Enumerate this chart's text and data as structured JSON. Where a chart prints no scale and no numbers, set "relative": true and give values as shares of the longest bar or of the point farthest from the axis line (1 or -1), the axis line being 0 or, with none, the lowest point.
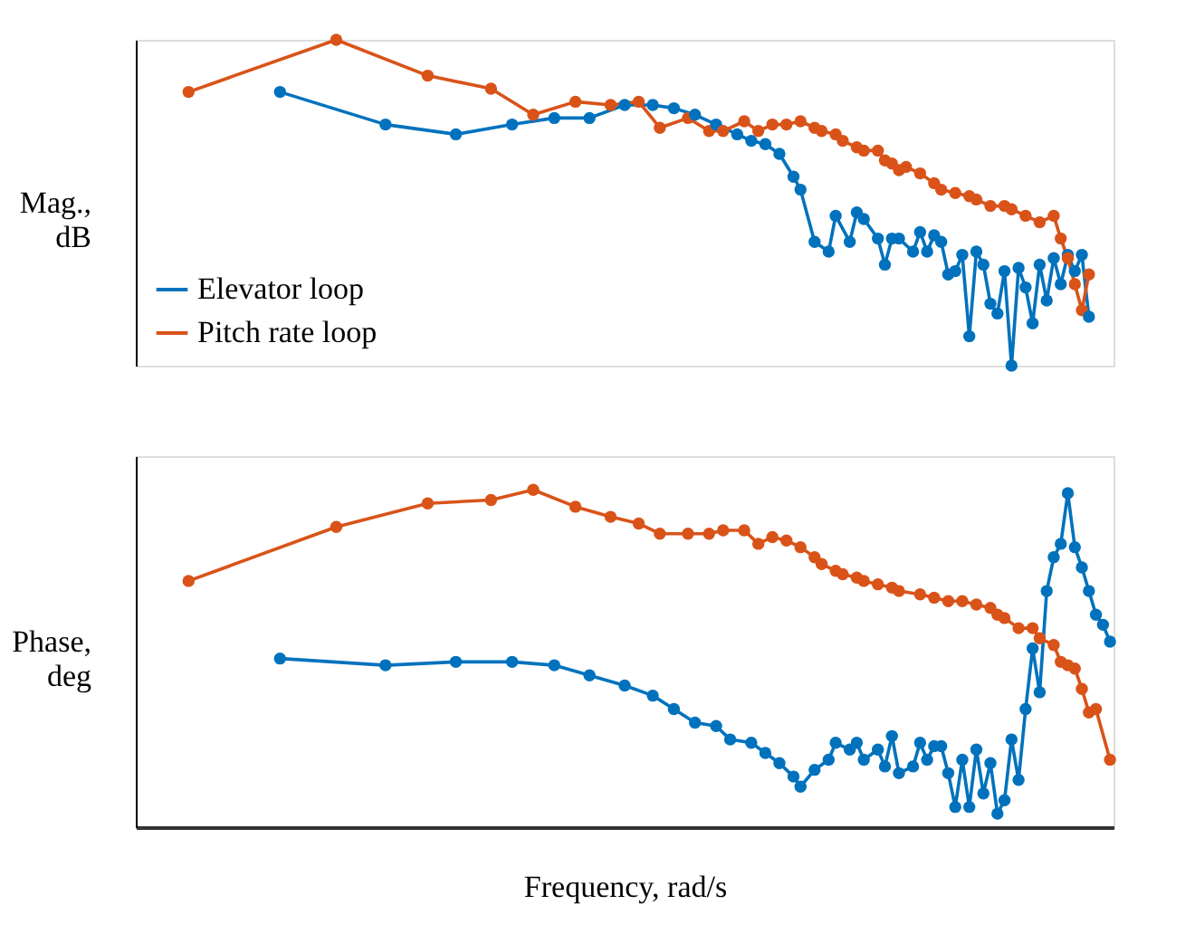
{
  "chart_data": [
    {
      "type": "line",
      "ylabel": "Mag., dB",
      "relative": true,
      "tick_labels": false,
      "grid": false,
      "legend": "bottom left",
      "marker": "circle",
      "line_style": "solid",
      "categories": [
        null,
        null,
        null,
        null,
        null,
        null,
        null,
        null,
        null,
        null,
        null,
        null,
        null,
        null,
        null,
        null,
        null,
        null,
        null,
        null,
        null,
        null,
        null,
        null,
        null,
        null,
        null,
        null,
        null,
        null,
        null,
        null,
        null,
        null,
        null,
        null,
        null,
        null,
        null,
        null,
        null,
        null,
        null,
        null,
        null,
        null,
        null,
        null,
        null,
        null,
        null,
        null,
        null,
        null,
        null,
        null,
        null,
        null,
        null,
        null,
        null,
        null,
        null,
        null,
        null,
        null,
        null,
        null,
        null,
        null,
        null,
        null,
        null,
        null,
        null,
        null,
        null,
        null,
        null,
        null,
        null,
        null,
        null,
        null,
        null,
        null,
        null,
        null,
        null,
        null,
        null,
        null,
        null,
        null,
        null,
        null,
        null,
        null,
        null,
        null,
        null,
        null,
        null,
        null,
        null,
        null,
        null,
        null,
        null,
        null,
        null,
        null,
        null,
        null,
        null,
        null,
        null,
        null,
        null,
        null,
        null,
        null,
        null,
        null,
        null,
        null,
        null,
        null,
        null,
        null,
        null,
        null,
        null,
        null,
        null,
        null,
        null,
        null,
        null
      ],
      "series": [
        {
          "name": "Elevator loop",
          "color": "#0072bd",
          "values": [
            null,
            null,
            null,
            null,
            null,
            null,
            null,
            null,
            null,
            null,
            null,
            null,
            null,
            null,
            null,
            null,
            null,
            null,
            null,
            null,
            0.84,
            null,
            null,
            null,
            null,
            null,
            null,
            null,
            null,
            null,
            null,
            null,
            null,
            null,
            null,
            0.74,
            null,
            null,
            null,
            null,
            null,
            null,
            null,
            null,
            null,
            0.71,
            null,
            null,
            null,
            null,
            null,
            null,
            null,
            0.74,
            null,
            null,
            null,
            null,
            null,
            0.76,
            null,
            null,
            null,
            null,
            0.76,
            null,
            null,
            null,
            null,
            0.8,
            null,
            null,
            null,
            0.8,
            null,
            null,
            0.79,
            null,
            null,
            0.77,
            null,
            null,
            0.74,
            null,
            null,
            0.71,
            null,
            0.69,
            null,
            0.68,
            null,
            0.65,
            null,
            0.58,
            0.54,
            null,
            0.38,
            null,
            0.35,
            0.46,
            null,
            0.38,
            0.47,
            0.45,
            null,
            0.39,
            0.31,
            0.39,
            0.39,
            null,
            0.35,
            0.41,
            0.35,
            0.4,
            0.38,
            0.28,
            0.29,
            0.34,
            0.09,
            0.35,
            0.31,
            0.19,
            0.16,
            0.29,
            0,
            0.3,
            0.24,
            0.13,
            0.31,
            0.2,
            0.33,
            0.25,
            0.34,
            0.29,
            0.34,
            0.15,
            null,
            null,
            null
          ]
        },
        {
          "name": "Pitch rate loop",
          "color": "#d95319",
          "values": [
            null,
            null,
            null,
            null,
            null,
            null,
            null,
            0.84,
            null,
            null,
            null,
            null,
            null,
            null,
            null,
            null,
            null,
            null,
            null,
            null,
            null,
            null,
            null,
            null,
            null,
            null,
            null,
            null,
            1,
            null,
            null,
            null,
            null,
            null,
            null,
            null,
            null,
            null,
            null,
            null,
            null,
            0.89,
            null,
            null,
            null,
            null,
            null,
            null,
            null,
            null,
            0.85,
            null,
            null,
            null,
            null,
            null,
            0.77,
            null,
            null,
            null,
            null,
            null,
            0.81,
            null,
            null,
            null,
            null,
            0.8,
            null,
            null,
            null,
            0.81,
            null,
            null,
            0.73,
            null,
            null,
            null,
            0.76,
            null,
            null,
            0.72,
            null,
            0.72,
            null,
            null,
            0.75,
            null,
            0.72,
            null,
            0.74,
            null,
            0.74,
            null,
            0.75,
            null,
            0.73,
            0.72,
            null,
            0.71,
            0.69,
            null,
            0.67,
            0.66,
            null,
            0.66,
            0.63,
            0.62,
            0.6,
            0.61,
            null,
            0.59,
            null,
            0.56,
            0.54,
            null,
            0.53,
            null,
            0.52,
            0.51,
            null,
            0.49,
            null,
            0.49,
            0.48,
            null,
            0.46,
            null,
            0.44,
            null,
            0.46,
            0.39,
            0.33,
            0.25,
            0.17,
            0.28,
            null,
            null,
            null
          ]
        }
      ]
    },
    {
      "type": "line",
      "ylabel": "Phase, deg",
      "xlabel": "Frequency, rad/s",
      "relative": true,
      "tick_labels": false,
      "grid": false,
      "marker": "circle",
      "line_style": "solid",
      "categories": [
        null,
        null,
        null,
        null,
        null,
        null,
        null,
        null,
        null,
        null,
        null,
        null,
        null,
        null,
        null,
        null,
        null,
        null,
        null,
        null,
        null,
        null,
        null,
        null,
        null,
        null,
        null,
        null,
        null,
        null,
        null,
        null,
        null,
        null,
        null,
        null,
        null,
        null,
        null,
        null,
        null,
        null,
        null,
        null,
        null,
        null,
        null,
        null,
        null,
        null,
        null,
        null,
        null,
        null,
        null,
        null,
        null,
        null,
        null,
        null,
        null,
        null,
        null,
        null,
        null,
        null,
        null,
        null,
        null,
        null,
        null,
        null,
        null,
        null,
        null,
        null,
        null,
        null,
        null,
        null,
        null,
        null,
        null,
        null,
        null,
        null,
        null,
        null,
        null,
        null,
        null,
        null,
        null,
        null,
        null,
        null,
        null,
        null,
        null,
        null,
        null,
        null,
        null,
        null,
        null,
        null,
        null,
        null,
        null,
        null,
        null,
        null,
        null,
        null,
        null,
        null,
        null,
        null,
        null,
        null,
        null,
        null,
        null,
        null,
        null,
        null,
        null,
        null,
        null,
        null,
        null,
        null,
        null,
        null,
        null,
        null,
        null,
        null,
        null
      ],
      "series": [
        {
          "color": "#0072bd",
          "values": [
            null,
            null,
            null,
            null,
            null,
            null,
            null,
            null,
            null,
            null,
            null,
            null,
            null,
            null,
            null,
            null,
            null,
            null,
            null,
            null,
            0.5,
            null,
            null,
            null,
            null,
            null,
            null,
            null,
            null,
            null,
            null,
            null,
            null,
            null,
            null,
            0.48,
            null,
            null,
            null,
            null,
            null,
            null,
            null,
            null,
            null,
            0.49,
            null,
            null,
            null,
            null,
            null,
            null,
            null,
            0.49,
            null,
            null,
            null,
            null,
            null,
            0.48,
            null,
            null,
            null,
            null,
            0.45,
            null,
            null,
            null,
            null,
            0.42,
            null,
            null,
            null,
            0.39,
            null,
            null,
            0.35,
            null,
            null,
            0.31,
            null,
            null,
            0.3,
            null,
            0.26,
            null,
            null,
            0.25,
            null,
            0.22,
            null,
            0.19,
            null,
            0.15,
            0.12,
            null,
            0.17,
            null,
            0.2,
            0.25,
            null,
            0.23,
            0.25,
            0.2,
            null,
            0.23,
            0.18,
            0.27,
            0.16,
            null,
            0.18,
            0.25,
            0.2,
            0.24,
            0.24,
            0.16,
            0.06,
            0.2,
            0.06,
            0.23,
            0.1,
            0.19,
            0.04,
            0.08,
            0.26,
            0.14,
            0.35,
            0.53,
            0.4,
            0.7,
            0.8,
            0.84,
            0.99,
            0.83,
            0.77,
            0.7,
            0.63,
            0.6,
            0.55
          ]
        },
        {
          "color": "#d95319",
          "values": [
            null,
            null,
            null,
            null,
            null,
            null,
            null,
            0.73,
            null,
            null,
            null,
            null,
            null,
            null,
            null,
            null,
            null,
            null,
            null,
            null,
            null,
            null,
            null,
            null,
            null,
            null,
            null,
            null,
            0.89,
            null,
            null,
            null,
            null,
            null,
            null,
            null,
            null,
            null,
            null,
            null,
            null,
            0.96,
            null,
            null,
            null,
            null,
            null,
            null,
            null,
            null,
            0.97,
            null,
            null,
            null,
            null,
            null,
            1,
            null,
            null,
            null,
            null,
            null,
            0.95,
            null,
            null,
            null,
            null,
            0.92,
            null,
            null,
            null,
            0.9,
            null,
            null,
            0.87,
            null,
            null,
            null,
            0.87,
            null,
            null,
            0.87,
            null,
            0.88,
            null,
            null,
            0.88,
            null,
            0.84,
            null,
            0.86,
            null,
            0.85,
            null,
            0.83,
            null,
            0.8,
            0.78,
            null,
            0.76,
            0.75,
            null,
            0.74,
            0.73,
            null,
            0.72,
            null,
            0.71,
            0.7,
            null,
            null,
            0.69,
            null,
            0.68,
            null,
            0.67,
            null,
            0.67,
            null,
            0.66,
            null,
            0.65,
            0.63,
            0.62,
            null,
            0.59,
            null,
            0.59,
            0.56,
            null,
            0.54,
            0.49,
            0.48,
            0.47,
            0.41,
            0.34,
            0.35,
            null,
            0.2
          ]
        }
      ]
    }
  ]
}
